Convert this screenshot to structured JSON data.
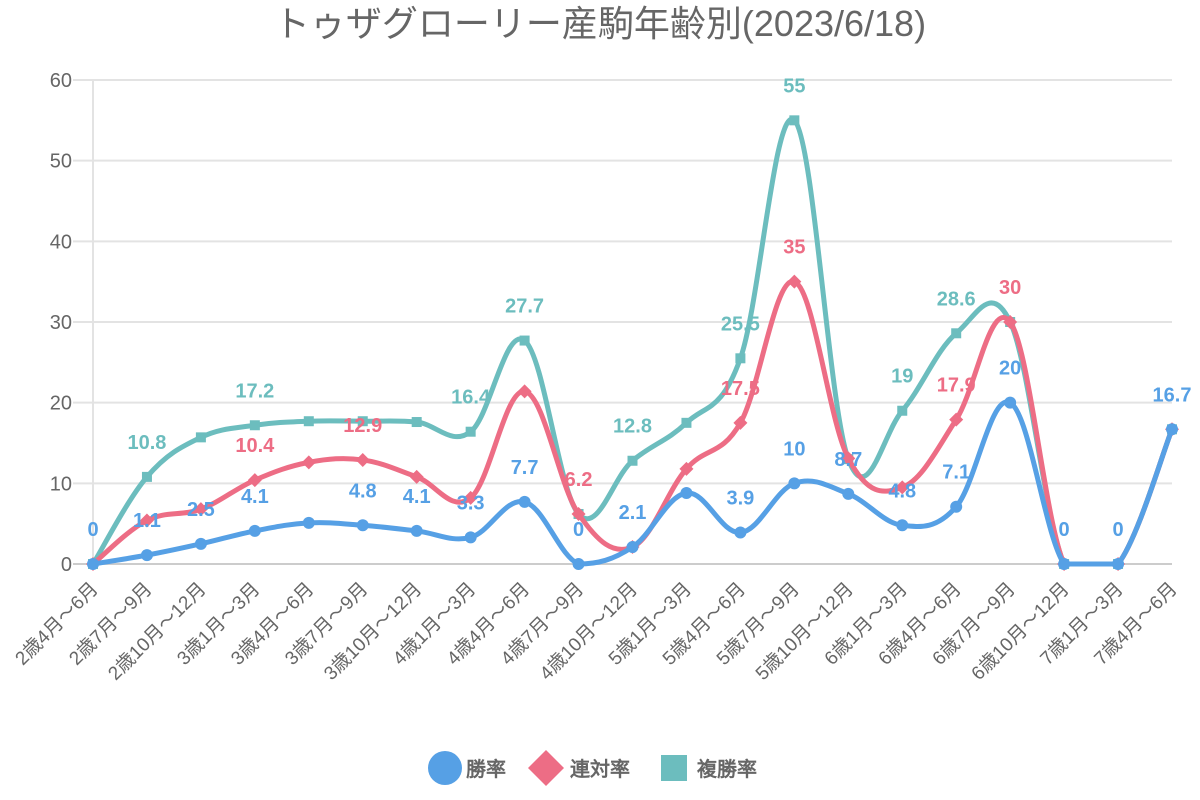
{
  "chart_data": {
    "type": "line",
    "title": "トゥザグローリー産駒年齢別(2023/6/18)",
    "xlabel": "",
    "ylabel": "",
    "ylim": [
      0,
      60
    ],
    "yticks": [
      0,
      10,
      20,
      30,
      40,
      50,
      60
    ],
    "grid": true,
    "smooth": true,
    "legend_position": "bottom",
    "categories": [
      "2歳4月～6月",
      "2歳7月～9月",
      "2歳10月～12月",
      "3歳1月～3月",
      "3歳4月～6月",
      "3歳7月～9月",
      "3歳10月～12月",
      "4歳1月～3月",
      "4歳4月～6月",
      "4歳7月～9月",
      "4歳10月～12月",
      "5歳1月～3月",
      "5歳4月～6月",
      "5歳7月～9月",
      "5歳10月～12月",
      "6歳1月～3月",
      "6歳4月～6月",
      "6歳7月～9月",
      "6歳10月～12月",
      "7歳1月～3月",
      "7歳4月～6月"
    ],
    "series": [
      {
        "name": "複勝率",
        "color": "#6cbdbe",
        "marker": "square",
        "values": [
          0,
          10.8,
          15.7,
          17.2,
          17.7,
          17.7,
          17.6,
          16.4,
          27.7,
          6.2,
          12.8,
          17.5,
          25.5,
          55,
          13.0,
          19,
          28.6,
          30,
          0,
          0,
          16.7
        ],
        "shown_labels": [
          false,
          true,
          false,
          true,
          false,
          false,
          false,
          true,
          true,
          false,
          true,
          false,
          true,
          true,
          false,
          true,
          true,
          false,
          false,
          false,
          false
        ]
      },
      {
        "name": "連対率",
        "color": "#ed6d85",
        "marker": "diamond",
        "values": [
          0,
          5.4,
          6.8,
          10.4,
          12.6,
          12.9,
          10.8,
          8.2,
          21.4,
          6.2,
          2.1,
          11.8,
          17.5,
          35,
          13.1,
          9.5,
          17.9,
          30,
          0,
          0,
          16.7
        ],
        "shown_labels": [
          false,
          false,
          false,
          true,
          false,
          true,
          false,
          false,
          false,
          true,
          false,
          false,
          true,
          true,
          false,
          false,
          true,
          true,
          false,
          false,
          false
        ]
      },
      {
        "name": "勝率",
        "color": "#56a0e5",
        "marker": "circle",
        "values": [
          0,
          1.1,
          2.5,
          4.1,
          5.1,
          4.8,
          4.1,
          3.3,
          7.7,
          0,
          2.1,
          8.8,
          3.9,
          10,
          8.7,
          4.8,
          7.1,
          20,
          0,
          0,
          16.7
        ],
        "shown_labels": [
          true,
          true,
          true,
          true,
          false,
          true,
          true,
          true,
          true,
          true,
          true,
          false,
          true,
          true,
          true,
          true,
          true,
          true,
          true,
          true,
          true
        ]
      }
    ]
  },
  "legend": [
    {
      "label": "勝率",
      "color": "#56a0e5",
      "marker": "circle"
    },
    {
      "label": "連対率",
      "color": "#ed6d85",
      "marker": "diamond"
    },
    {
      "label": "複勝率",
      "color": "#6cbdbe",
      "marker": "square"
    }
  ]
}
